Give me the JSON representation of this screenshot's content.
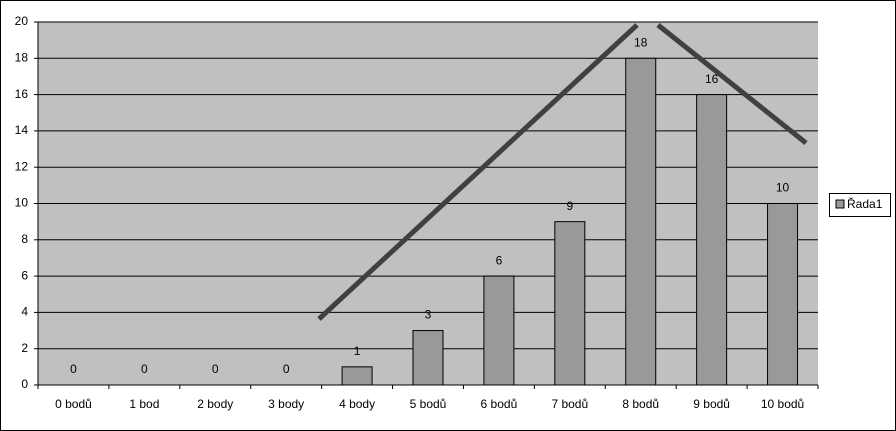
{
  "chart_data": {
    "type": "bar",
    "categories": [
      "0 bodů",
      "1 bod",
      "2 body",
      "3 body",
      "4 body",
      "5 bodů",
      "6 bodů",
      "7 bodů",
      "8 bodů",
      "9 bodů",
      "10 bodů"
    ],
    "series": [
      {
        "name": "Řada1",
        "color": "#999999",
        "values": [
          0,
          0,
          0,
          0,
          1,
          3,
          6,
          9,
          18,
          16,
          10
        ]
      }
    ],
    "ylim": [
      0,
      20
    ],
    "yticks": [
      0,
      2,
      4,
      6,
      8,
      10,
      12,
      14,
      16,
      18,
      20
    ],
    "grid": true,
    "legend": "right"
  }
}
